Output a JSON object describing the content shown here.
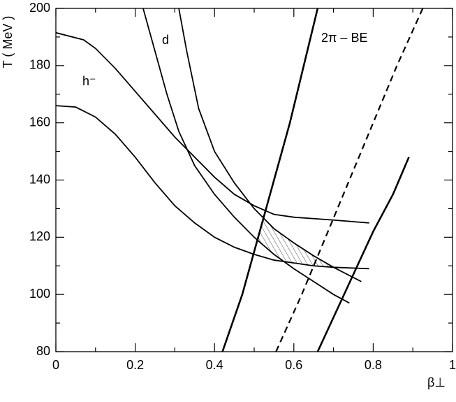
{
  "chart_data": {
    "type": "line",
    "x_label": "β⊥",
    "y_label": "T ( MeV )",
    "annotations": [
      "h⁻",
      "d",
      "2π – BE"
    ],
    "xlim": [
      0,
      1
    ],
    "ylim": [
      80,
      200
    ],
    "xticks": [
      0,
      0.2,
      0.4,
      0.6,
      0.8,
      1
    ],
    "yticks": [
      80,
      100,
      120,
      140,
      160,
      180,
      200
    ],
    "series": [
      {
        "color": "#000000",
        "linewidth": 1.8,
        "style": "solid",
        "x": [
          0,
          0.07,
          0.1,
          0.15,
          0.2,
          0.25,
          0.3,
          0.35,
          0.4,
          0.45,
          0.5,
          0.55,
          0.6,
          0.7,
          0.79
        ],
        "values": [
          191.5,
          189,
          186,
          179,
          171,
          163,
          155,
          148,
          141,
          135,
          131,
          128,
          127,
          126,
          125
        ]
      },
      {
        "color": "#000000",
        "linewidth": 1.8,
        "style": "solid",
        "x": [
          0,
          0.05,
          0.1,
          0.15,
          0.2,
          0.25,
          0.3,
          0.35,
          0.4,
          0.45,
          0.5,
          0.55,
          0.6,
          0.65,
          0.7,
          0.79
        ],
        "values": [
          166,
          165.5,
          162,
          156,
          148,
          139,
          131,
          125,
          120,
          116.5,
          114,
          112,
          111,
          110,
          109.5,
          109
        ]
      },
      {
        "color": "#000000",
        "linewidth": 1.8,
        "style": "solid",
        "x": [
          0.22,
          0.25,
          0.28,
          0.31,
          0.35,
          0.4,
          0.45,
          0.5,
          0.55,
          0.6,
          0.65,
          0.7,
          0.74
        ],
        "values": [
          200,
          185,
          170,
          157,
          145,
          135,
          127,
          120,
          114,
          109,
          104.5,
          100,
          97
        ]
      },
      {
        "color": "#000000",
        "linewidth": 1.8,
        "style": "solid",
        "x": [
          0.31,
          0.33,
          0.36,
          0.4,
          0.45,
          0.5,
          0.55,
          0.6,
          0.65,
          0.7,
          0.77
        ],
        "values": [
          200,
          185,
          165,
          150,
          139,
          130,
          123,
          118,
          113.5,
          109.5,
          104.5
        ]
      },
      {
        "color": "#000000",
        "linewidth": 2.6,
        "style": "solid",
        "x": [
          0.42,
          0.47,
          0.51,
          0.55,
          0.59,
          0.625,
          0.66
        ],
        "values": [
          80,
          100,
          120,
          140,
          160,
          180,
          200
        ]
      },
      {
        "color": "#000000",
        "linewidth": 2.2,
        "style": "dashed",
        "x": [
          0.555,
          0.62,
          0.68,
          0.74,
          0.8,
          0.86,
          0.925
        ],
        "values": [
          80,
          100,
          120,
          140,
          160,
          180,
          200
        ]
      },
      {
        "color": "#000000",
        "linewidth": 2.6,
        "style": "solid",
        "x": [
          0.66,
          0.71,
          0.76,
          0.8,
          0.85,
          0.89
        ],
        "values": [
          80,
          95,
          110,
          122,
          135,
          148
        ]
      }
    ]
  }
}
